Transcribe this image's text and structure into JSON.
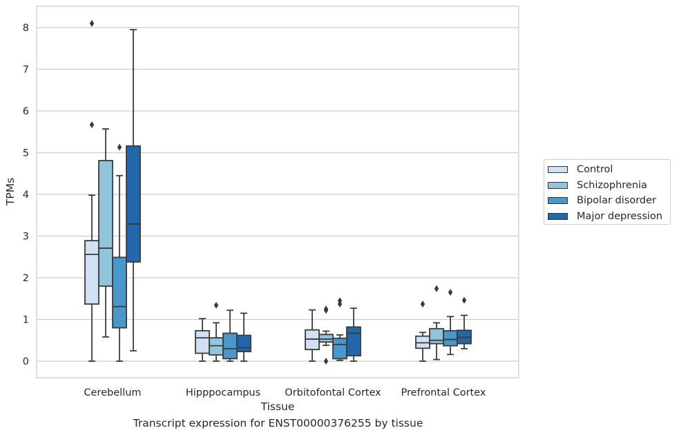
{
  "chart_data": {
    "type": "box",
    "title": "",
    "caption": "Transcript expression for ENST00000376255 by tissue",
    "xlabel": "Tissue",
    "ylabel": "TPMs",
    "ylim": [
      -0.4,
      8.5
    ],
    "yticks": [
      "0",
      "1",
      "2",
      "3",
      "4",
      "5",
      "6",
      "7",
      "8"
    ],
    "grid": "horizontal",
    "legend_position": "right",
    "categories": [
      "Cerebellum",
      "Hipppocampus",
      "Orbitofontal Cortex",
      "Prefrontal Cortex"
    ],
    "series": [
      {
        "name": "Control",
        "color": "#cfe1f2",
        "boxes": [
          {
            "whisker_low": 0,
            "q1": 1.37,
            "median": 2.56,
            "q3": 2.89,
            "whisker_high": 3.98,
            "outliers": [
              8.1,
              5.67
            ]
          },
          {
            "whisker_low": 0,
            "q1": 0.19,
            "median": 0.56,
            "q3": 0.73,
            "whisker_high": 1.02,
            "outliers": []
          },
          {
            "whisker_low": 0,
            "q1": 0.28,
            "median": 0.53,
            "q3": 0.75,
            "whisker_high": 1.23,
            "outliers": []
          },
          {
            "whisker_low": 0,
            "q1": 0.31,
            "median": 0.44,
            "q3": 0.6,
            "whisker_high": 0.69,
            "outliers": [
              1.37
            ]
          }
        ]
      },
      {
        "name": "Schizophrenia",
        "color": "#93c4de",
        "boxes": [
          {
            "whisker_low": 0.58,
            "q1": 1.8,
            "median": 2.71,
            "q3": 4.81,
            "whisker_high": 5.57,
            "outliers": []
          },
          {
            "whisker_low": 0,
            "q1": 0.15,
            "median": 0.37,
            "q3": 0.56,
            "whisker_high": 0.92,
            "outliers": [
              1.34
            ]
          },
          {
            "whisker_low": 0.38,
            "q1": 0.46,
            "median": 0.53,
            "q3": 0.64,
            "whisker_high": 0.72,
            "outliers": [
              1.22,
              1.25,
              0
            ]
          },
          {
            "whisker_low": 0.04,
            "q1": 0.42,
            "median": 0.5,
            "q3": 0.78,
            "whisker_high": 0.92,
            "outliers": [
              1.74
            ]
          }
        ]
      },
      {
        "name": "Bipolar disorder",
        "color": "#4a98c9",
        "boxes": [
          {
            "whisker_low": 0,
            "q1": 0.8,
            "median": 1.31,
            "q3": 2.49,
            "whisker_high": 4.45,
            "outliers": [
              5.13
            ]
          },
          {
            "whisker_low": 0,
            "q1": 0.06,
            "median": 0.3,
            "q3": 0.67,
            "whisker_high": 1.22,
            "outliers": []
          },
          {
            "whisker_low": 0.02,
            "q1": 0.06,
            "median": 0.4,
            "q3": 0.55,
            "whisker_high": 0.63,
            "outliers": [
              1.37,
              1.45
            ]
          },
          {
            "whisker_low": 0.16,
            "q1": 0.37,
            "median": 0.52,
            "q3": 0.73,
            "whisker_high": 1.07,
            "outliers": [
              1.65
            ]
          }
        ]
      },
      {
        "name": "Major depression",
        "color": "#2266ac",
        "boxes": [
          {
            "whisker_low": 0.25,
            "q1": 2.38,
            "median": 3.29,
            "q3": 5.16,
            "whisker_high": 7.95,
            "outliers": []
          },
          {
            "whisker_low": 0,
            "q1": 0.23,
            "median": 0.32,
            "q3": 0.62,
            "whisker_high": 1.15,
            "outliers": []
          },
          {
            "whisker_low": 0,
            "q1": 0.13,
            "median": 0.67,
            "q3": 0.82,
            "whisker_high": 1.27,
            "outliers": []
          },
          {
            "whisker_low": 0.3,
            "q1": 0.42,
            "median": 0.57,
            "q3": 0.74,
            "whisker_high": 1.1,
            "outliers": [
              1.46
            ]
          }
        ]
      }
    ]
  }
}
